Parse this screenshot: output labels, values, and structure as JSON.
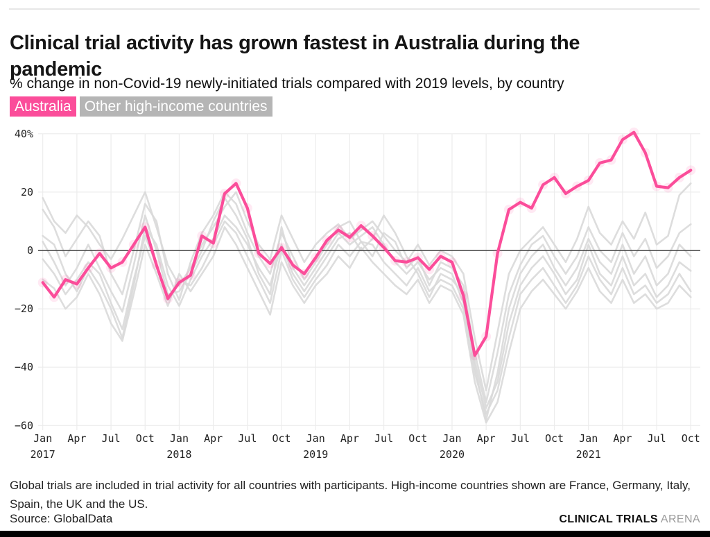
{
  "header": {
    "title": "Clinical trial activity has grown fastest in Australia during the pandemic",
    "subtitle": "% change in non-Covid-19 newly-initiated trials compared with 2019 levels, by country",
    "legend": [
      {
        "label": "Australia",
        "color": "#fb4d9a",
        "text_color": "#ffffff"
      },
      {
        "label": "Other high-income countries",
        "color": "#b5b5b5",
        "text_color": "#ffffff"
      }
    ]
  },
  "chart_data": {
    "type": "line",
    "frequency": "monthly",
    "x_start": "Jan 2017",
    "x_end": "Oct 2021",
    "ylim": [
      -60,
      40
    ],
    "y_tick_values": [
      40,
      20,
      0,
      -20,
      -40,
      -60
    ],
    "y_tick_labels": [
      "40%",
      "20",
      "0",
      "−20",
      "−40",
      "−60"
    ],
    "x_quarter_ticks": [
      {
        "month": "Jan",
        "year": "2017"
      },
      {
        "month": "Apr"
      },
      {
        "month": "Jul"
      },
      {
        "month": "Oct"
      },
      {
        "month": "Jan",
        "year": "2018"
      },
      {
        "month": "Apr"
      },
      {
        "month": "Jul"
      },
      {
        "month": "Oct"
      },
      {
        "month": "Jan",
        "year": "2019"
      },
      {
        "month": "Apr"
      },
      {
        "month": "Jul"
      },
      {
        "month": "Oct"
      },
      {
        "month": "Jan",
        "year": "2020"
      },
      {
        "month": "Apr"
      },
      {
        "month": "Jul"
      },
      {
        "month": "Oct"
      },
      {
        "month": "Jan",
        "year": "2021"
      },
      {
        "month": "Apr"
      },
      {
        "month": "Jul"
      },
      {
        "month": "Oct"
      }
    ],
    "grid": true,
    "zero_line": true,
    "colors": {
      "australia": "#fb4d9a",
      "australia_halo": "rgba(251,77,154,0.12)",
      "other": "#d9d9d9",
      "gridline": "#ececec",
      "zero_line": "#3f3f3f"
    },
    "series": [
      {
        "name": "Australia",
        "role": "highlight",
        "values": [
          -11,
          -16,
          -10,
          -11.5,
          -6,
          -1,
          -6,
          -4,
          2,
          8,
          -5,
          -16.5,
          -11,
          -8.5,
          5,
          2.5,
          19.5,
          23,
          14.5,
          -1,
          -4.5,
          1,
          -5,
          -8,
          -2.5,
          3.5,
          7,
          4.5,
          8.5,
          5,
          1,
          -3.5,
          -4,
          -2.5,
          -6.5,
          -2,
          -4,
          -15.5,
          -36,
          -29.5,
          -1,
          14,
          16.5,
          14.5,
          22.5,
          25,
          19.5,
          22,
          24,
          30,
          31,
          38,
          40.5,
          33.5,
          22,
          21.5,
          25,
          27.5
        ]
      },
      {
        "name": "High-income country 1",
        "role": "context",
        "values": [
          18,
          10,
          6,
          12,
          8,
          2,
          -3,
          4,
          12,
          20,
          8,
          -5,
          -12,
          -6,
          2,
          8,
          15,
          20,
          10,
          2,
          -3,
          12,
          4,
          -4,
          2,
          6,
          9,
          4,
          7,
          10,
          5,
          0,
          -4,
          2,
          -5,
          0,
          -2,
          -8,
          -30,
          -48,
          -28,
          -8,
          0,
          4,
          8,
          2,
          -4,
          4,
          15,
          6,
          2,
          10,
          4,
          13,
          2,
          5,
          19,
          23
        ]
      },
      {
        "name": "High-income country 2",
        "role": "context",
        "values": [
          14,
          8,
          -2,
          4,
          10,
          5,
          -8,
          -15,
          0,
          16,
          10,
          -8,
          -17,
          -4,
          6,
          12,
          20,
          16,
          6,
          -2,
          -8,
          6,
          -2,
          -10,
          -4,
          2,
          8,
          10,
          3,
          -2,
          6,
          3,
          -6,
          -2,
          -12,
          -4,
          -6,
          -12,
          -35,
          -52,
          -35,
          -15,
          -5,
          2,
          5,
          -2,
          -8,
          -2,
          8,
          0,
          -4,
          6,
          -2,
          4,
          -6,
          -2,
          6,
          9
        ]
      },
      {
        "name": "High-income country 3",
        "role": "context",
        "values": [
          5,
          2,
          -8,
          -14,
          -6,
          -12,
          -20,
          -30,
          -12,
          8,
          2,
          -12,
          -19,
          -10,
          -2,
          4,
          12,
          8,
          2,
          -6,
          -12,
          2,
          -8,
          -14,
          -8,
          -2,
          4,
          6,
          0,
          4,
          12,
          6,
          -2,
          -8,
          -16,
          -8,
          -10,
          -15,
          -40,
          -58,
          -42,
          -20,
          -8,
          -2,
          2,
          -6,
          -12,
          -6,
          4,
          -4,
          -8,
          2,
          -8,
          -2,
          -12,
          -8,
          2,
          -2
        ]
      },
      {
        "name": "High-income country 4",
        "role": "context",
        "values": [
          3,
          -4,
          -12,
          -6,
          2,
          -6,
          -14,
          -21,
          -5,
          12,
          0,
          -15,
          -14,
          -8,
          0,
          10,
          18,
          12,
          4,
          -8,
          -15,
          8,
          -6,
          -12,
          -6,
          0,
          6,
          2,
          5,
          8,
          2,
          -4,
          -8,
          -4,
          -10,
          -6,
          -8,
          -18,
          -38,
          -54,
          -45,
          -25,
          -12,
          -6,
          -2,
          -8,
          -15,
          -10,
          2,
          -8,
          -12,
          -2,
          -12,
          -8,
          -16,
          -12,
          -4,
          -7
        ]
      },
      {
        "name": "High-income country 5",
        "role": "context",
        "values": [
          -3,
          -8,
          -15,
          -10,
          -4,
          -8,
          -18,
          -27,
          -10,
          5,
          -5,
          -17,
          -10,
          -12,
          -6,
          2,
          10,
          6,
          -2,
          -10,
          -18,
          0,
          -10,
          -16,
          -10,
          -5,
          2,
          -2,
          3,
          2,
          -4,
          -8,
          -12,
          -6,
          -14,
          -10,
          -12,
          -20,
          -42,
          -56,
          -48,
          -30,
          -15,
          -10,
          -6,
          -12,
          -18,
          -12,
          -2,
          -10,
          -15,
          -6,
          -15,
          -12,
          -18,
          -15,
          -8,
          -14
        ]
      },
      {
        "name": "High-income country 6",
        "role": "context",
        "values": [
          -10,
          -13,
          -20,
          -16,
          -8,
          -15,
          -25,
          -31,
          -15,
          2,
          -8,
          -19,
          -8,
          -14,
          -8,
          -2,
          8,
          2,
          -6,
          -14,
          -22,
          -4,
          -12,
          -18,
          -12,
          -8,
          -2,
          -6,
          1,
          -4,
          -8,
          -12,
          -15,
          -10,
          -18,
          -12,
          -14,
          -22,
          -45,
          -59,
          -52,
          -35,
          -20,
          -14,
          -10,
          -15,
          -20,
          -14,
          -6,
          -14,
          -18,
          -10,
          -18,
          -15,
          -20,
          -18,
          -12,
          -16
        ]
      }
    ]
  },
  "footer": {
    "note": "Global trials are included in trial activity for all countries with participants. High-income countries shown are France, Germany, Italy, Spain, the UK and the US.",
    "source": "Source: GlobalData",
    "brand_bold": "CLINICAL TRIALS",
    "brand_light": "ARENA"
  }
}
